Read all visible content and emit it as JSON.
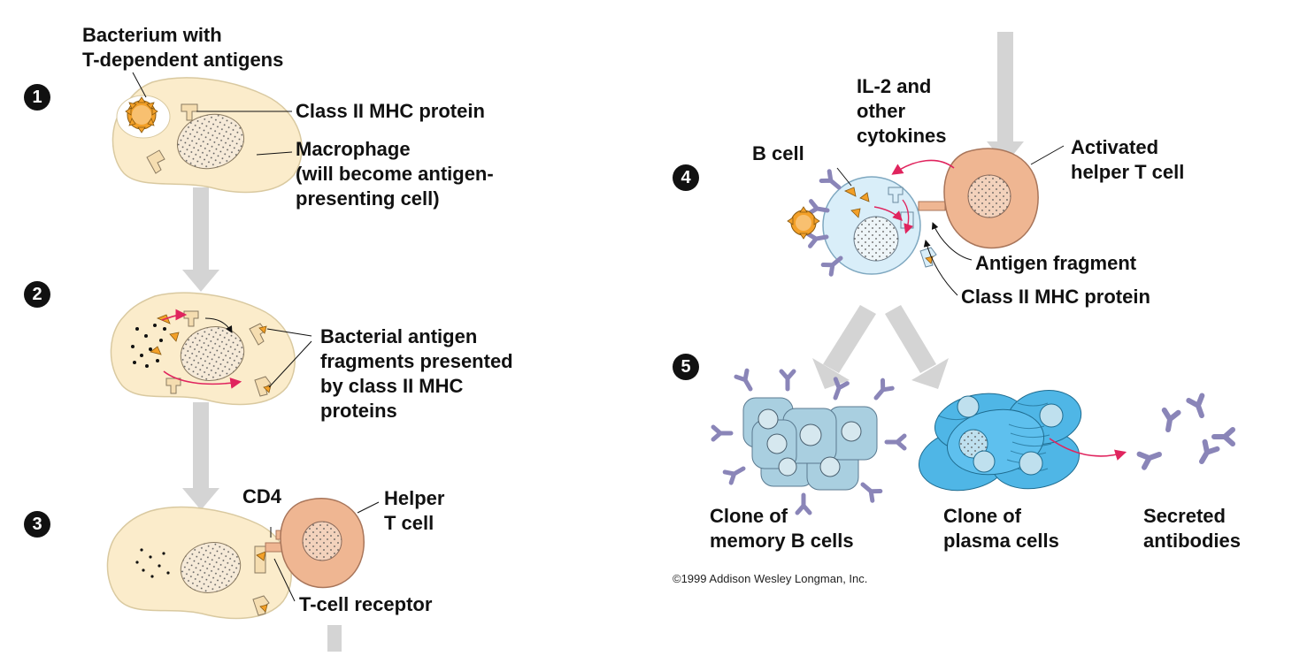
{
  "steps": [
    "1",
    "2",
    "3",
    "4",
    "5"
  ],
  "labels": {
    "bacterium": [
      "Bacterium with",
      "T-dependent antigens"
    ],
    "class_ii_mhc_1": [
      "Class II MHC protein"
    ],
    "macrophage": [
      "Macrophage",
      "(will become antigen-",
      "presenting cell)"
    ],
    "fragments_presented": [
      "Bacterial antigen",
      "fragments presented",
      "by class II MHC",
      "proteins"
    ],
    "cd4": [
      "CD4"
    ],
    "helper_t": [
      "Helper",
      "T cell"
    ],
    "t_cell_receptor": [
      "T-cell receptor"
    ],
    "il2": [
      "IL-2 and",
      "other",
      "cytokines"
    ],
    "b_cell": [
      "B cell"
    ],
    "activated_helper": [
      "Activated",
      "helper T cell"
    ],
    "antigen_fragment": [
      "Antigen fragment"
    ],
    "class_ii_mhc_4": [
      "Class II MHC protein"
    ],
    "memory_clone": [
      "Clone of",
      "memory B cells"
    ],
    "plasma_clone": [
      "Clone of",
      "plasma cells"
    ],
    "antibodies": [
      "Secreted",
      "antibodies"
    ]
  },
  "credit": "©1999 Addison Wesley Longman, Inc.",
  "colors": {
    "macrophage": "#fbeccb",
    "helper_t": "#efb692",
    "b_cell": "#d9eef9",
    "memory_b": "#a9cfe0",
    "plasma": "#4fb6e6",
    "antigen": "#f3a028",
    "antibody": "#8a85b8",
    "arrow": "#d4d4d4",
    "pink_arrow": "#e0245e"
  }
}
